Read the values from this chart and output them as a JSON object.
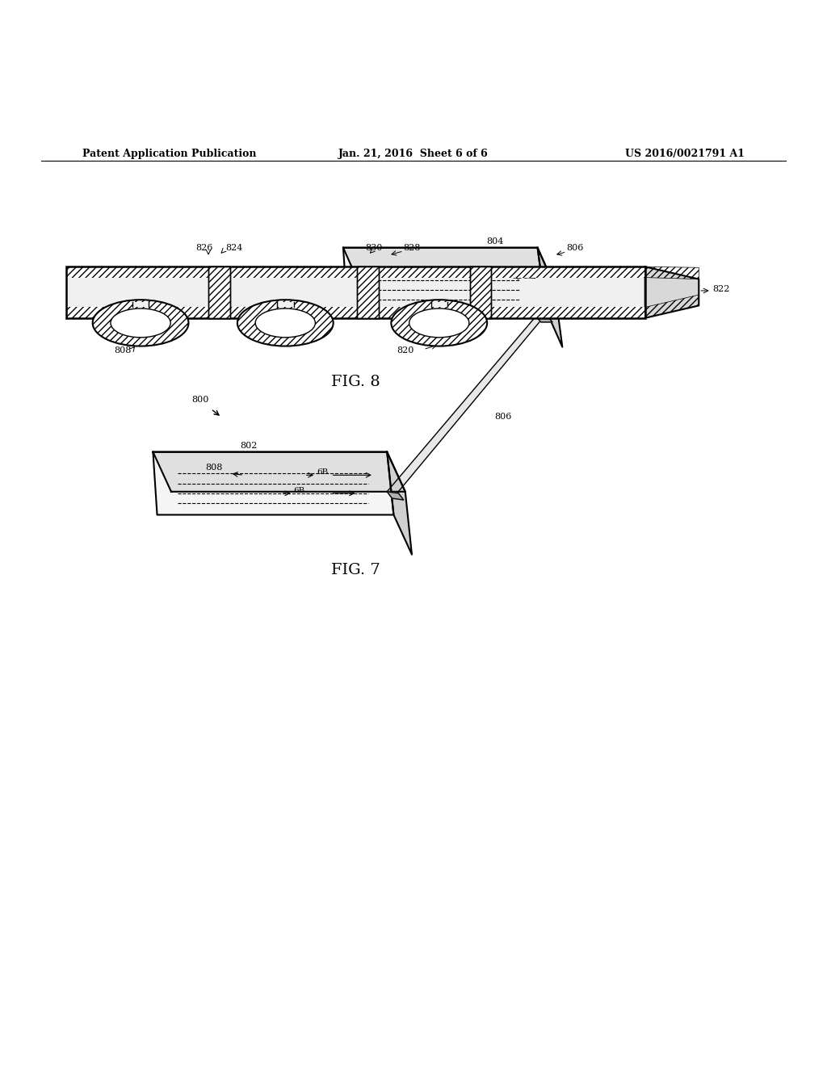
{
  "bg_color": "#ffffff",
  "line_color": "#000000",
  "header_left": "Patent Application Publication",
  "header_mid": "Jan. 21, 2016  Sheet 6 of 6",
  "header_right": "US 2016/0021791 A1",
  "fig7_label": "FIG. 7",
  "fig8_label": "FIG. 8"
}
